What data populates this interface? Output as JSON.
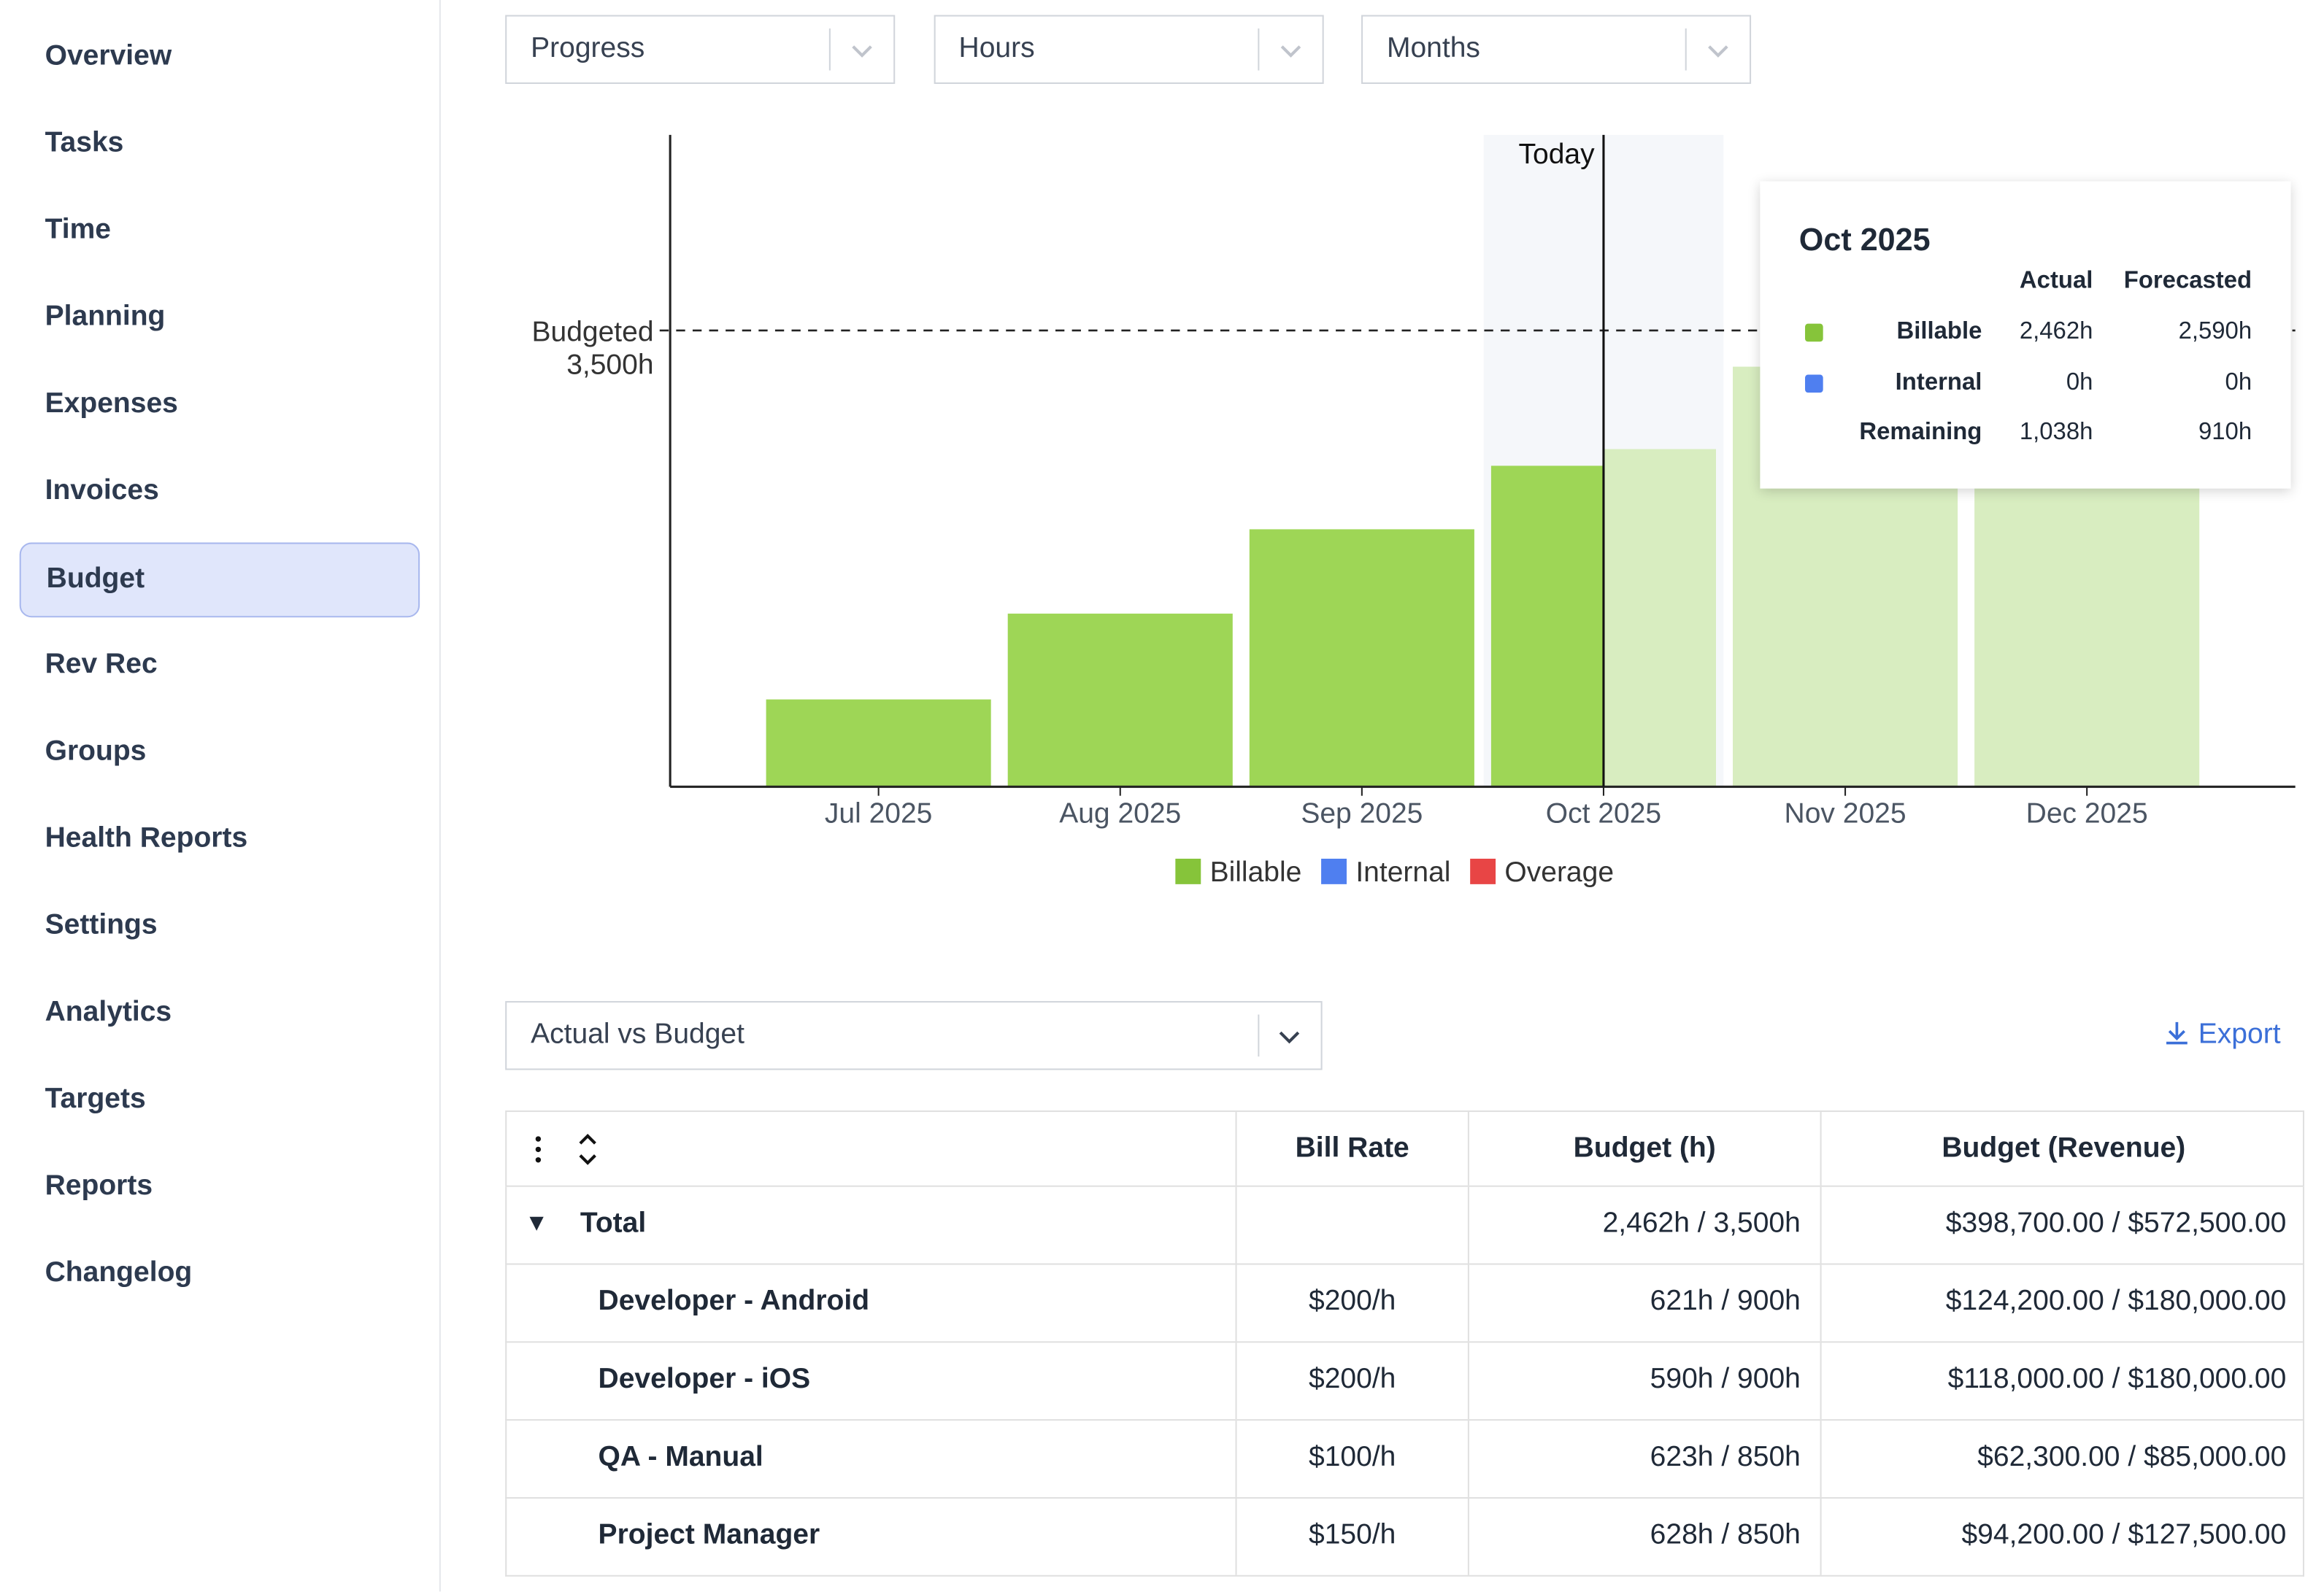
{
  "sidebar": {
    "items": [
      "Overview",
      "Tasks",
      "Time",
      "Planning",
      "Expenses",
      "Invoices",
      "Budget",
      "Rev Rec",
      "Groups",
      "Health Reports",
      "Settings",
      "Analytics",
      "Targets",
      "Reports",
      "Changelog"
    ],
    "active": 6
  },
  "filters": [
    "Progress",
    "Hours",
    "Months"
  ],
  "chart_data": {
    "type": "bar",
    "categories": [
      "Jul 2025",
      "Aug 2025",
      "Sep 2025",
      "Oct 2025",
      "Nov 2025",
      "Dec 2025"
    ],
    "series": [
      {
        "name": "Actual",
        "color": "#9ed656",
        "values": [
          670,
          1328,
          1975,
          2462,
          null,
          null
        ]
      },
      {
        "name": "Forecasted",
        "color": "#d8edc0",
        "values": [
          null,
          null,
          null,
          2590,
          3222,
          3350
        ]
      }
    ],
    "ylim": [
      0,
      5000
    ],
    "budget": {
      "label": "Budgeted",
      "value": 3500,
      "value_label": "3,500h"
    },
    "today": {
      "label": "Today",
      "category": 3
    },
    "legend": [
      {
        "name": "Billable",
        "color": "#86c43a"
      },
      {
        "name": "Internal",
        "color": "#4f7ff0"
      },
      {
        "name": "Overage",
        "color": "#e84545"
      }
    ]
  },
  "tooltip": {
    "title": "Oct 2025",
    "columns": [
      "Actual",
      "Forecasted"
    ],
    "rows": [
      {
        "name": "Billable",
        "color": "#86c43a",
        "actual": "2,462h",
        "forecasted": "2,590h"
      },
      {
        "name": "Internal",
        "color": "#4f7ff0",
        "actual": "0h",
        "forecasted": "0h"
      },
      {
        "name": "Remaining",
        "actual": "1,038h",
        "forecasted": "910h"
      }
    ]
  },
  "view_select": "Actual vs Budget",
  "export": "Export",
  "table": {
    "headers": [
      "Bill Rate",
      "Budget (h)",
      "Budget (Revenue)"
    ],
    "total": {
      "name": "Total",
      "budget_h": "2,462h / 3,500h",
      "budget_revenue": "$398,700.00 / $572,500.00"
    },
    "rows": [
      [
        "Developer - Android",
        "$200/h",
        "621h / 900h",
        "$124,200.00 / $180,000.00"
      ],
      [
        "Developer - iOS",
        "$200/h",
        "590h / 900h",
        "$118,000.00 / $180,000.00"
      ],
      [
        "QA - Manual",
        "$100/h",
        "623h / 850h",
        "$62,300.00 / $85,000.00"
      ],
      [
        "Project Manager",
        "$150/h",
        "628h / 850h",
        "$94,200.00 / $127,500.00"
      ]
    ]
  }
}
